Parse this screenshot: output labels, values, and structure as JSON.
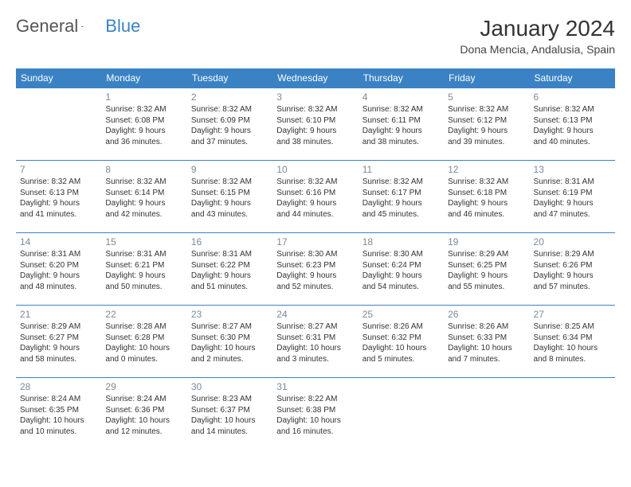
{
  "logo": {
    "text1": "General",
    "text2": "Blue"
  },
  "title": "January 2024",
  "location": "Dona Mencia, Andalusia, Spain",
  "headers": [
    "Sunday",
    "Monday",
    "Tuesday",
    "Wednesday",
    "Thursday",
    "Friday",
    "Saturday"
  ],
  "colors": {
    "header_bg": "#3b82c4",
    "header_fg": "#ffffff",
    "daynum": "#7a8a9a",
    "rule": "#3b82c4"
  },
  "weeks": [
    [
      null,
      {
        "n": "1",
        "sr": "Sunrise: 8:32 AM",
        "ss": "Sunset: 6:08 PM",
        "d1": "Daylight: 9 hours",
        "d2": "and 36 minutes."
      },
      {
        "n": "2",
        "sr": "Sunrise: 8:32 AM",
        "ss": "Sunset: 6:09 PM",
        "d1": "Daylight: 9 hours",
        "d2": "and 37 minutes."
      },
      {
        "n": "3",
        "sr": "Sunrise: 8:32 AM",
        "ss": "Sunset: 6:10 PM",
        "d1": "Daylight: 9 hours",
        "d2": "and 38 minutes."
      },
      {
        "n": "4",
        "sr": "Sunrise: 8:32 AM",
        "ss": "Sunset: 6:11 PM",
        "d1": "Daylight: 9 hours",
        "d2": "and 38 minutes."
      },
      {
        "n": "5",
        "sr": "Sunrise: 8:32 AM",
        "ss": "Sunset: 6:12 PM",
        "d1": "Daylight: 9 hours",
        "d2": "and 39 minutes."
      },
      {
        "n": "6",
        "sr": "Sunrise: 8:32 AM",
        "ss": "Sunset: 6:13 PM",
        "d1": "Daylight: 9 hours",
        "d2": "and 40 minutes."
      }
    ],
    [
      {
        "n": "7",
        "sr": "Sunrise: 8:32 AM",
        "ss": "Sunset: 6:13 PM",
        "d1": "Daylight: 9 hours",
        "d2": "and 41 minutes."
      },
      {
        "n": "8",
        "sr": "Sunrise: 8:32 AM",
        "ss": "Sunset: 6:14 PM",
        "d1": "Daylight: 9 hours",
        "d2": "and 42 minutes."
      },
      {
        "n": "9",
        "sr": "Sunrise: 8:32 AM",
        "ss": "Sunset: 6:15 PM",
        "d1": "Daylight: 9 hours",
        "d2": "and 43 minutes."
      },
      {
        "n": "10",
        "sr": "Sunrise: 8:32 AM",
        "ss": "Sunset: 6:16 PM",
        "d1": "Daylight: 9 hours",
        "d2": "and 44 minutes."
      },
      {
        "n": "11",
        "sr": "Sunrise: 8:32 AM",
        "ss": "Sunset: 6:17 PM",
        "d1": "Daylight: 9 hours",
        "d2": "and 45 minutes."
      },
      {
        "n": "12",
        "sr": "Sunrise: 8:32 AM",
        "ss": "Sunset: 6:18 PM",
        "d1": "Daylight: 9 hours",
        "d2": "and 46 minutes."
      },
      {
        "n": "13",
        "sr": "Sunrise: 8:31 AM",
        "ss": "Sunset: 6:19 PM",
        "d1": "Daylight: 9 hours",
        "d2": "and 47 minutes."
      }
    ],
    [
      {
        "n": "14",
        "sr": "Sunrise: 8:31 AM",
        "ss": "Sunset: 6:20 PM",
        "d1": "Daylight: 9 hours",
        "d2": "and 48 minutes."
      },
      {
        "n": "15",
        "sr": "Sunrise: 8:31 AM",
        "ss": "Sunset: 6:21 PM",
        "d1": "Daylight: 9 hours",
        "d2": "and 50 minutes."
      },
      {
        "n": "16",
        "sr": "Sunrise: 8:31 AM",
        "ss": "Sunset: 6:22 PM",
        "d1": "Daylight: 9 hours",
        "d2": "and 51 minutes."
      },
      {
        "n": "17",
        "sr": "Sunrise: 8:30 AM",
        "ss": "Sunset: 6:23 PM",
        "d1": "Daylight: 9 hours",
        "d2": "and 52 minutes."
      },
      {
        "n": "18",
        "sr": "Sunrise: 8:30 AM",
        "ss": "Sunset: 6:24 PM",
        "d1": "Daylight: 9 hours",
        "d2": "and 54 minutes."
      },
      {
        "n": "19",
        "sr": "Sunrise: 8:29 AM",
        "ss": "Sunset: 6:25 PM",
        "d1": "Daylight: 9 hours",
        "d2": "and 55 minutes."
      },
      {
        "n": "20",
        "sr": "Sunrise: 8:29 AM",
        "ss": "Sunset: 6:26 PM",
        "d1": "Daylight: 9 hours",
        "d2": "and 57 minutes."
      }
    ],
    [
      {
        "n": "21",
        "sr": "Sunrise: 8:29 AM",
        "ss": "Sunset: 6:27 PM",
        "d1": "Daylight: 9 hours",
        "d2": "and 58 minutes."
      },
      {
        "n": "22",
        "sr": "Sunrise: 8:28 AM",
        "ss": "Sunset: 6:28 PM",
        "d1": "Daylight: 10 hours",
        "d2": "and 0 minutes."
      },
      {
        "n": "23",
        "sr": "Sunrise: 8:27 AM",
        "ss": "Sunset: 6:30 PM",
        "d1": "Daylight: 10 hours",
        "d2": "and 2 minutes."
      },
      {
        "n": "24",
        "sr": "Sunrise: 8:27 AM",
        "ss": "Sunset: 6:31 PM",
        "d1": "Daylight: 10 hours",
        "d2": "and 3 minutes."
      },
      {
        "n": "25",
        "sr": "Sunrise: 8:26 AM",
        "ss": "Sunset: 6:32 PM",
        "d1": "Daylight: 10 hours",
        "d2": "and 5 minutes."
      },
      {
        "n": "26",
        "sr": "Sunrise: 8:26 AM",
        "ss": "Sunset: 6:33 PM",
        "d1": "Daylight: 10 hours",
        "d2": "and 7 minutes."
      },
      {
        "n": "27",
        "sr": "Sunrise: 8:25 AM",
        "ss": "Sunset: 6:34 PM",
        "d1": "Daylight: 10 hours",
        "d2": "and 8 minutes."
      }
    ],
    [
      {
        "n": "28",
        "sr": "Sunrise: 8:24 AM",
        "ss": "Sunset: 6:35 PM",
        "d1": "Daylight: 10 hours",
        "d2": "and 10 minutes."
      },
      {
        "n": "29",
        "sr": "Sunrise: 8:24 AM",
        "ss": "Sunset: 6:36 PM",
        "d1": "Daylight: 10 hours",
        "d2": "and 12 minutes."
      },
      {
        "n": "30",
        "sr": "Sunrise: 8:23 AM",
        "ss": "Sunset: 6:37 PM",
        "d1": "Daylight: 10 hours",
        "d2": "and 14 minutes."
      },
      {
        "n": "31",
        "sr": "Sunrise: 8:22 AM",
        "ss": "Sunset: 6:38 PM",
        "d1": "Daylight: 10 hours",
        "d2": "and 16 minutes."
      },
      null,
      null,
      null
    ]
  ]
}
